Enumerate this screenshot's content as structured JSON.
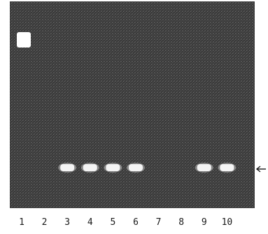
{
  "gel": {
    "lanes": [
      "1",
      "2",
      "3",
      "4",
      "5",
      "6",
      "7",
      "8",
      "9",
      "10"
    ],
    "bands_present": [
      false,
      false,
      true,
      true,
      true,
      true,
      false,
      false,
      true,
      true
    ],
    "band_marker": "arrow"
  },
  "colors": {
    "gel": "#3d3d3d",
    "band": "#f4f4f4",
    "background": "#ffffff"
  }
}
